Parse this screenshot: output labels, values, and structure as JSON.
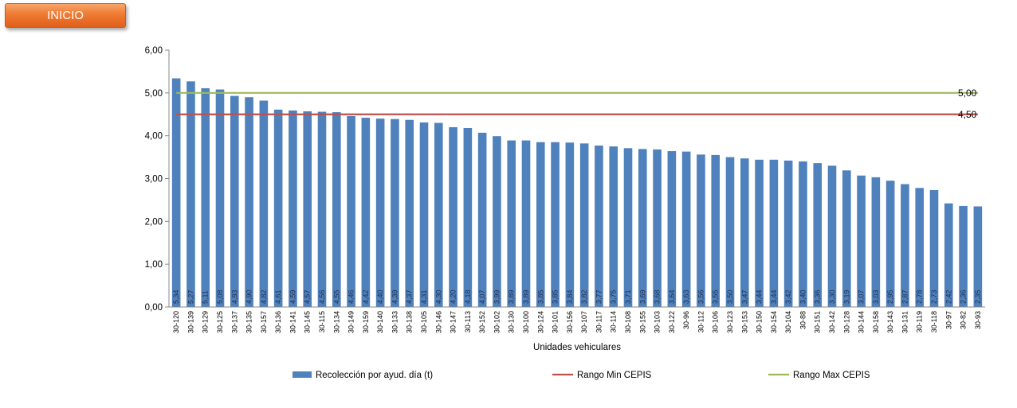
{
  "nav": {
    "inicio_label": "INICIO"
  },
  "chart_data": {
    "type": "bar",
    "xlabel": "Unidades vehiculares",
    "ylabel": "",
    "ylim": [
      0,
      6
    ],
    "yticks": [
      "0,00",
      "1,00",
      "2,00",
      "3,00",
      "4,00",
      "5,00",
      "6,00"
    ],
    "grid": false,
    "legend_position": "bottom",
    "categories": [
      "30-120",
      "30-139",
      "30-129",
      "30-125",
      "30-137",
      "30-135",
      "30-157",
      "30-136",
      "30-141",
      "30-145",
      "30-115",
      "30-134",
      "30-149",
      "30-159",
      "30-140",
      "30-133",
      "30-138",
      "30-105",
      "30-146",
      "30-147",
      "30-113",
      "30-152",
      "30-102",
      "30-130",
      "30-100",
      "30-124",
      "30-101",
      "30-156",
      "30-107",
      "30-117",
      "30-114",
      "30-108",
      "30-155",
      "30-103",
      "30-122",
      "30-96",
      "30-112",
      "30-106",
      "30-123",
      "30-153",
      "30-150",
      "30-154",
      "30-104",
      "30-88",
      "30-151",
      "30-142",
      "30-128",
      "30-144",
      "30-158",
      "30-143",
      "30-131",
      "30-119",
      "30-118",
      "30-97",
      "30-82",
      "30-93"
    ],
    "series": [
      {
        "name": "Recolección por ayud. día (t)",
        "color": "#4f81bd",
        "values": [
          5.34,
          5.27,
          5.11,
          5.08,
          4.93,
          4.9,
          4.82,
          4.61,
          4.59,
          4.57,
          4.56,
          4.55,
          4.46,
          4.42,
          4.4,
          4.39,
          4.37,
          4.31,
          4.3,
          4.2,
          4.18,
          4.07,
          3.99,
          3.89,
          3.89,
          3.85,
          3.85,
          3.84,
          3.82,
          3.77,
          3.75,
          3.71,
          3.69,
          3.68,
          3.64,
          3.63,
          3.56,
          3.55,
          3.5,
          3.47,
          3.44,
          3.44,
          3.42,
          3.4,
          3.36,
          3.3,
          3.19,
          3.07,
          3.03,
          2.95,
          2.87,
          2.78,
          2.73,
          2.42,
          2.36,
          2.35
        ],
        "labels": [
          "5,34",
          "5,27",
          "5,11",
          "5,08",
          "4,93",
          "4,90",
          "4,82",
          "4,61",
          "4,59",
          "4,57",
          "4,56",
          "4,55",
          "4,46",
          "4,42",
          "4,40",
          "4,39",
          "4,37",
          "4,31",
          "4,30",
          "4,20",
          "4,18",
          "4,07",
          "3,99",
          "3,89",
          "3,89",
          "3,85",
          "3,85",
          "3,84",
          "3,82",
          "3,77",
          "3,75",
          "3,71",
          "3,69",
          "3,68",
          "3,64",
          "3,63",
          "3,56",
          "3,55",
          "3,50",
          "3,47",
          "3,44",
          "3,44",
          "3,42",
          "3,40",
          "3,36",
          "3,30",
          "3,19",
          "3,07",
          "3,03",
          "2,95",
          "2,87",
          "2,78",
          "2,73",
          "2,42",
          "2,36",
          "2,35"
        ]
      }
    ],
    "reference_lines": [
      {
        "name": "Rango Min CEPIS",
        "value": 4.5,
        "label": "4,50",
        "color": "#c0504d"
      },
      {
        "name": "Rango Max CEPIS",
        "value": 5.0,
        "label": "5,00",
        "color": "#9bbb59"
      }
    ]
  }
}
